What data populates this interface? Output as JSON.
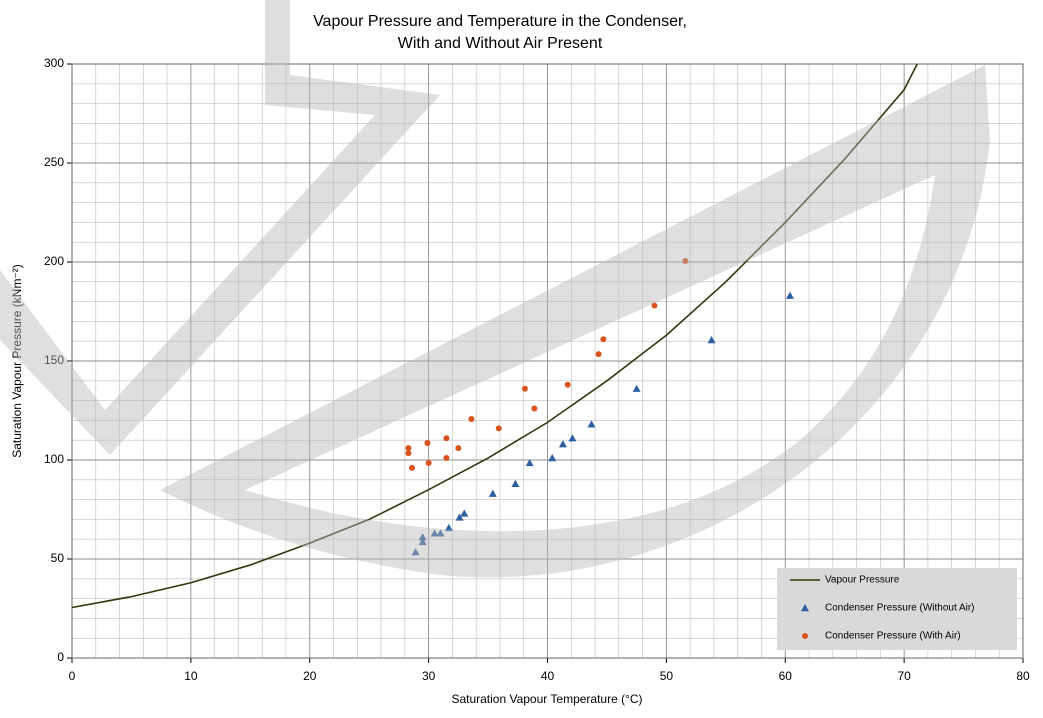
{
  "chart_data": {
    "type": "scatter",
    "title": [
      "Vapour Pressure and Temperature in the Condenser,",
      "With and Without Air Present"
    ],
    "xlabel": "Saturation Vapour Temperature (°C)",
    "ylabel": "Saturation Vapour Pressure (kNm⁻²)",
    "xlim": [
      0,
      80
    ],
    "ylim": [
      0,
      300
    ],
    "xticks": [
      0,
      10,
      20,
      30,
      40,
      50,
      60,
      70,
      80
    ],
    "yticks": [
      0,
      50,
      100,
      150,
      200,
      250,
      300
    ],
    "grid": true,
    "minor_grid": true,
    "legend": "lower right",
    "series": [
      {
        "name": "Vapour Pressure",
        "kind": "line",
        "color": "#2d3a0f",
        "x": [
          0,
          5,
          10,
          15,
          20,
          25,
          30,
          35,
          40,
          45,
          50,
          55,
          60,
          65,
          70,
          71.1
        ],
        "values": [
          25.5,
          31,
          38,
          47,
          58,
          70,
          85,
          101,
          119,
          140,
          163,
          190,
          220,
          252,
          287,
          300
        ]
      },
      {
        "name": "Condenser Pressure (Without Air)",
        "kind": "triangle",
        "color": "#2e5fa3",
        "x": [
          28.9,
          29.5,
          29.5,
          30.5,
          31,
          31.7,
          32.6,
          33,
          35.4,
          37.3,
          38.5,
          40.4,
          41.3,
          42.1,
          43.7,
          47.5,
          53.8,
          60.4
        ],
        "values": [
          53.5,
          58.6,
          61,
          63,
          63,
          65.7,
          71,
          73,
          83,
          88,
          98.5,
          101,
          108,
          111,
          118,
          136,
          160.6,
          183
        ]
      },
      {
        "name": "Condenser Pressure (With Air)",
        "kind": "dot",
        "color": "#d9531e",
        "x": [
          28.3,
          28.3,
          28.6,
          29.9,
          30,
          31.5,
          31.5,
          32.5,
          33.6,
          35.9,
          38.1,
          38.9,
          41.7,
          44.3,
          44.7,
          49,
          51.6
        ],
        "values": [
          106,
          103.5,
          96,
          108.6,
          98.5,
          111,
          101,
          106,
          120.7,
          116,
          136,
          126,
          138,
          153.5,
          161,
          178,
          200.5
        ]
      }
    ]
  }
}
